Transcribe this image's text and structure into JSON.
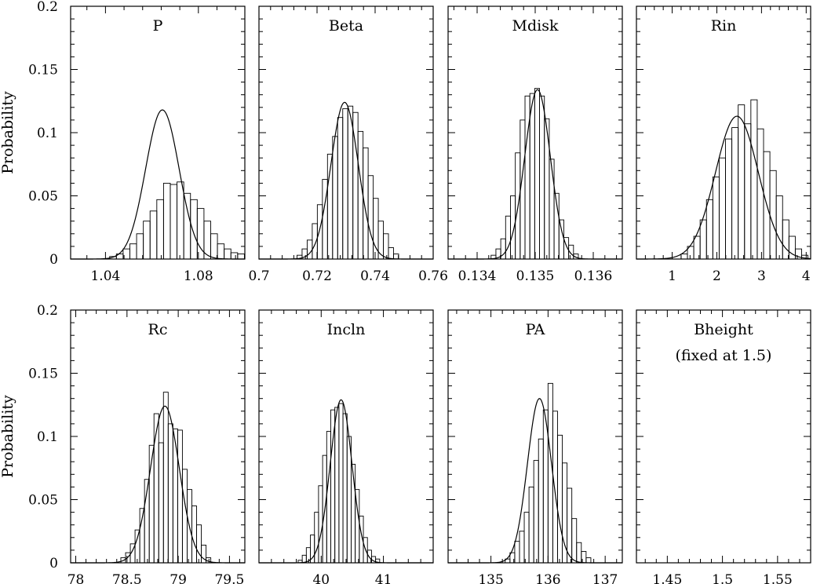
{
  "chart_data": {
    "type": "histogram-grid",
    "shared_ylabel": "Probability",
    "ylim": [
      0,
      0.2
    ],
    "yticks": [
      0,
      0.05,
      0.1,
      0.15,
      0.2
    ],
    "ytick_labels": [
      "0",
      "0.05",
      "0.1",
      "0.15",
      "0.2"
    ],
    "panels": [
      {
        "title": "P",
        "xlim": [
          1.025,
          1.1
        ],
        "xticks": [
          1.04,
          1.08
        ],
        "xtick_labels": [
          "1.04",
          "1.08"
        ],
        "bin_start": 1.0418,
        "bin_width": 0.0029,
        "counts": [
          0.002,
          0.004,
          0.008,
          0.012,
          0.02,
          0.03,
          0.038,
          0.047,
          0.06,
          0.059,
          0.061,
          0.052,
          0.047,
          0.04,
          0.03,
          0.02,
          0.012,
          0.008,
          0.005,
          0.004
        ],
        "fit": {
          "mean": 1.0645,
          "sigma": 0.0072,
          "peak": 0.118
        }
      },
      {
        "title": "Beta",
        "xlim": [
          0.7,
          0.76
        ],
        "xticks": [
          0.7,
          0.72,
          0.74,
          0.76
        ],
        "xtick_labels": [
          "0.7",
          "0.72",
          "0.74",
          "0.76"
        ],
        "bin_start": 0.7131,
        "bin_width": 0.00175,
        "counts": [
          0.003,
          0.008,
          0.015,
          0.028,
          0.043,
          0.063,
          0.083,
          0.097,
          0.112,
          0.119,
          0.121,
          0.116,
          0.101,
          0.088,
          0.066,
          0.048,
          0.03,
          0.02,
          0.009,
          0.004
        ],
        "fit": {
          "mean": 0.7295,
          "sigma": 0.0047,
          "peak": 0.124
        }
      },
      {
        "title": "Mdisk",
        "xlim": [
          0.1335,
          0.1365
        ],
        "xticks": [
          0.134,
          0.135,
          0.136
        ],
        "xtick_labels": [
          "0.134",
          "0.135",
          "0.136"
        ],
        "bin_start": 0.13424,
        "bin_width": 8.35e-05,
        "counts": [
          0.003,
          0.008,
          0.016,
          0.034,
          0.05,
          0.084,
          0.11,
          0.129,
          0.131,
          0.135,
          0.129,
          0.111,
          0.079,
          0.052,
          0.031,
          0.017,
          0.011,
          0.004
        ],
        "fit": {
          "mean": 0.13504,
          "sigma": 0.00022,
          "peak": 0.134
        }
      },
      {
        "title": "Rin",
        "xlim": [
          0.2,
          4.1
        ],
        "xticks": [
          1,
          2,
          3,
          4
        ],
        "xtick_labels": [
          "1",
          "2",
          "3",
          "4"
        ],
        "bin_start": 1.2,
        "bin_width": 0.142,
        "counts": [
          0.004,
          0.01,
          0.018,
          0.031,
          0.047,
          0.065,
          0.08,
          0.095,
          0.104,
          0.122,
          0.107,
          0.126,
          0.103,
          0.085,
          0.07,
          0.05,
          0.031,
          0.018,
          0.008,
          0.003
        ],
        "fit": {
          "mean": 2.45,
          "sigma": 0.48,
          "peak": 0.113
        }
      },
      {
        "title": "Rc",
        "xlim": [
          77.95,
          79.65
        ],
        "xticks": [
          78,
          78.5,
          79,
          79.5
        ],
        "xtick_labels": [
          "78",
          "78.5",
          "79",
          "79.5"
        ],
        "bin_start": 78.44,
        "bin_width": 0.0462,
        "counts": [
          0.004,
          0.008,
          0.015,
          0.026,
          0.043,
          0.066,
          0.093,
          0.118,
          0.095,
          0.135,
          0.11,
          0.106,
          0.105,
          0.074,
          0.058,
          0.045,
          0.03,
          0.014,
          0.004
        ],
        "fit": {
          "mean": 78.87,
          "sigma": 0.14,
          "peak": 0.124
        }
      },
      {
        "title": "Incln",
        "xlim": [
          39.0,
          41.8
        ],
        "xticks": [
          40,
          41
        ],
        "xtick_labels": [
          "40",
          "41"
        ],
        "bin_start": 39.63,
        "bin_width": 0.0655,
        "counts": [
          0.002,
          0.006,
          0.012,
          0.022,
          0.04,
          0.061,
          0.085,
          0.104,
          0.121,
          0.123,
          0.126,
          0.118,
          0.1,
          0.078,
          0.058,
          0.037,
          0.02,
          0.01,
          0.005,
          0.003
        ],
        "fit": {
          "mean": 40.32,
          "sigma": 0.175,
          "peak": 0.129
        }
      },
      {
        "title": "PA",
        "xlim": [
          134.25,
          137.3
        ],
        "xticks": [
          135,
          136,
          137
        ],
        "xtick_labels": [
          "135",
          "136",
          "137"
        ],
        "bin_start": 135.25,
        "bin_width": 0.0833,
        "counts": [
          0.003,
          0.008,
          0.017,
          0.025,
          0.04,
          0.06,
          0.081,
          0.098,
          0.121,
          0.142,
          0.12,
          0.101,
          0.079,
          0.059,
          0.035,
          0.016,
          0.009,
          0.004
        ],
        "fit": {
          "mean": 135.85,
          "sigma": 0.21,
          "peak": 0.13
        }
      },
      {
        "title": "Bheight",
        "subtitle": "(fixed at 1.5)",
        "xlim": [
          1.422,
          1.58
        ],
        "xticks": [
          1.45,
          1.5,
          1.55
        ],
        "xtick_labels": [
          "1.45",
          "1.5",
          "1.55"
        ],
        "bin_start": 0,
        "bin_width": 0,
        "counts": [],
        "fit": null
      }
    ]
  }
}
